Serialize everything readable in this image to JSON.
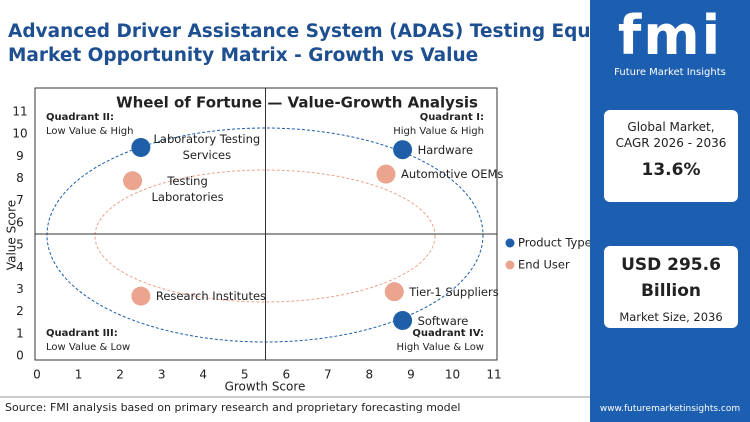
{
  "header": {
    "title_lines": [
      "Advanced Driver Assistance System (ADAS) Testing Equipment",
      "Market Opportunity Matrix - Growth vs Value"
    ]
  },
  "chart_data": {
    "type": "scatter",
    "title": "Wheel of Fortune — Value-Growth Analysis",
    "xlabel": "Growth Score",
    "ylabel": "Value Score",
    "xlim": [
      0,
      11
    ],
    "ylim": [
      0,
      11
    ],
    "xticks": [
      0,
      1,
      2,
      3,
      4,
      5,
      6,
      7,
      8,
      9,
      10,
      11
    ],
    "yticks": [
      0,
      1,
      2,
      3,
      4,
      5,
      6,
      7,
      8,
      9,
      10,
      11
    ],
    "legend": "right",
    "series": [
      {
        "name": "Product Type",
        "color": "#1f5fa8",
        "x": [
          2.5,
          8.8,
          8.8
        ],
        "values": [
          9.4,
          9.3,
          1.6
        ],
        "labels": [
          "Laboratory Testing Services",
          "Hardware",
          "Software"
        ]
      },
      {
        "name": "End User",
        "color": "#eba48d",
        "x": [
          2.3,
          8.4,
          2.5,
          8.6
        ],
        "values": [
          7.9,
          8.2,
          2.7,
          2.9
        ],
        "labels": [
          "Testing Laboratories",
          "Automotive OEMs",
          "Research Institutes",
          "Tier-1 Suppliers"
        ]
      }
    ],
    "quadrants": [
      {
        "name": "Quadrant II:",
        "text": "Low Value & High"
      },
      {
        "name": "Quadrant I:",
        "text": "High Value & High"
      },
      {
        "name": "Quadrant III:",
        "text": "Low Value & Low"
      },
      {
        "name": "Quadrant IV:",
        "text": "High Value & Low"
      }
    ]
  },
  "source": "Source: FMI analysis based on primary research and proprietary forecasting model",
  "sidebar": {
    "logo": "fmi",
    "brand": "Future Market Insights",
    "cagr_lines": [
      "Global Market,",
      "CAGR 2026 - 2036"
    ],
    "cagr": "13.6%",
    "market_size": "USD 295.6 Billion",
    "market_size_label": "Market Size, 2036",
    "url": "www.futuremarketinsights.com"
  }
}
